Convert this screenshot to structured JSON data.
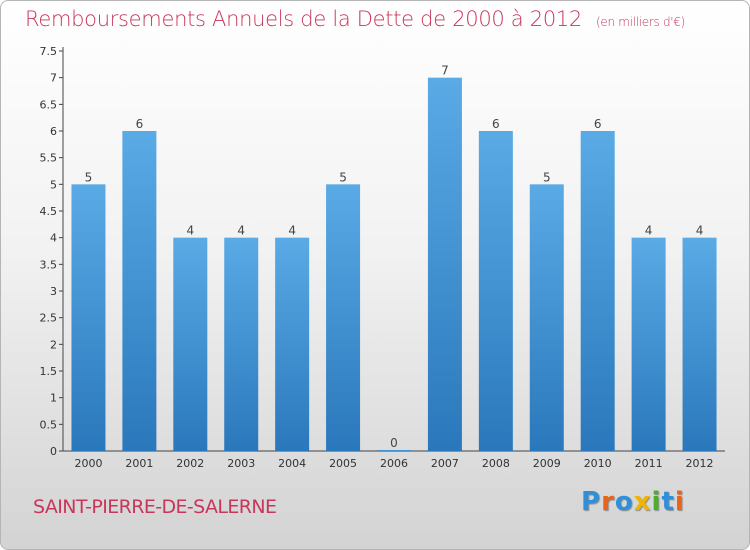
{
  "title": "Remboursements Annuels de la Dette de 2000 à 2012",
  "unit_note": "(en milliers d'€)",
  "commune": "SAINT-PIERRE-DE-SALERNE",
  "logo": {
    "text": "Proxiti",
    "letter_colors": [
      "#2f8fd8",
      "#e8641c",
      "#2f8fd8",
      "#f0b400",
      "#4caf2a",
      "#2f8fd8",
      "#e8641c"
    ]
  },
  "colors": {
    "title": "#c8365a",
    "bar_top": "#5aaae6",
    "bar_bottom": "#2a78bb"
  },
  "chart_data": {
    "type": "bar",
    "title": "Remboursements Annuels de la Dette de 2000 à 2012",
    "xlabel": "",
    "ylabel": "",
    "categories": [
      "2000",
      "2001",
      "2002",
      "2003",
      "2004",
      "2005",
      "2006",
      "2007",
      "2008",
      "2009",
      "2010",
      "2011",
      "2012"
    ],
    "values": [
      5,
      6,
      4,
      4,
      4,
      5,
      0,
      7,
      6,
      5,
      6,
      4,
      4
    ],
    "data_labels": [
      "5",
      "6",
      "4",
      "4",
      "4",
      "5",
      "0",
      "7",
      "6",
      "5",
      "6",
      "4",
      "4"
    ],
    "ylim": [
      0,
      7.5
    ],
    "yticks": [
      "0",
      "0.5",
      "1",
      "1.5",
      "2",
      "2.5",
      "3",
      "3.5",
      "4",
      "4.5",
      "5",
      "5.5",
      "6",
      "6.5",
      "7",
      "7.5"
    ],
    "grid": false,
    "legend": "none"
  }
}
